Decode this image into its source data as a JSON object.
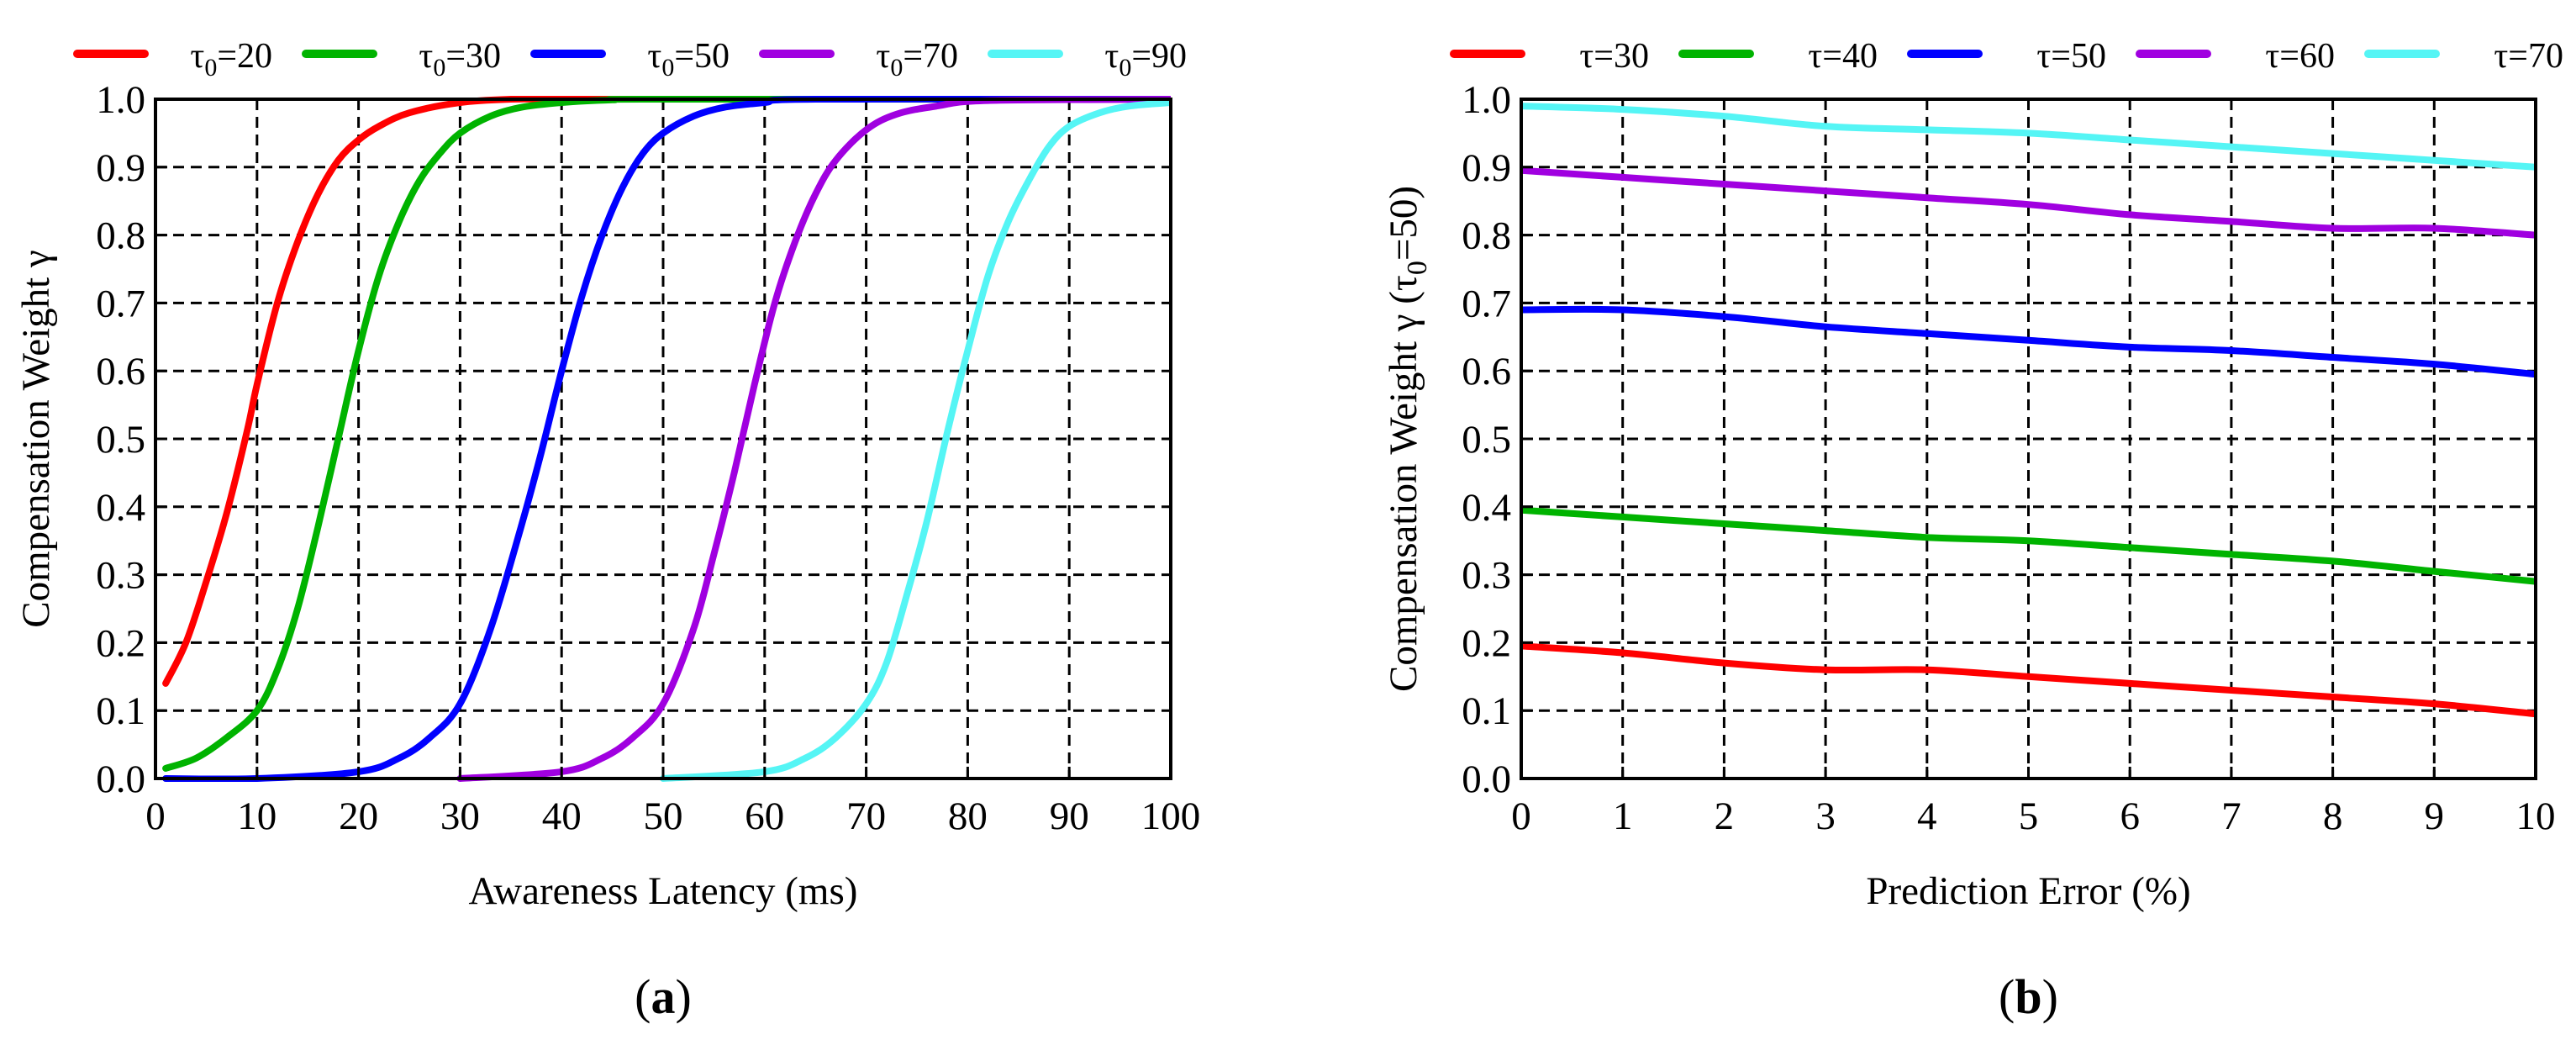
{
  "chart_data": [
    {
      "type": "line",
      "panel_label": "a",
      "title": "",
      "xlabel": "Awareness Latency (ms)",
      "ylabel": "Compensation Weight γ",
      "xlim": [
        0,
        100
      ],
      "ylim": [
        0.0,
        1.0
      ],
      "xticks": [
        "0",
        "10",
        "20",
        "30",
        "40",
        "50",
        "60",
        "70",
        "80",
        "90",
        "100"
      ],
      "yticks": [
        "0.0",
        "0.1",
        "0.2",
        "0.3",
        "0.4",
        "0.5",
        "0.6",
        "0.7",
        "0.8",
        "0.9",
        "1.0"
      ],
      "grid": true,
      "legend_position": "top",
      "series": [
        {
          "name_sym": "τ",
          "name_sub": "0",
          "name_rest": "=20",
          "color": "#ff0000",
          "x": [
            1,
            3,
            5,
            7,
            9,
            10,
            12,
            14,
            16,
            18,
            20,
            22,
            25,
            30,
            35,
            40,
            60,
            100
          ],
          "y": [
            0.14,
            0.2,
            0.29,
            0.39,
            0.51,
            0.58,
            0.7,
            0.79,
            0.86,
            0.91,
            0.94,
            0.96,
            0.98,
            0.995,
            1.0,
            1.0,
            1.0,
            1.0
          ]
        },
        {
          "name_sym": "τ",
          "name_sub": "0",
          "name_rest": "=30",
          "color": "#00b300",
          "x": [
            1,
            4,
            7,
            10,
            12,
            14,
            16,
            18,
            20,
            22,
            24,
            26,
            28,
            30,
            33,
            36,
            40,
            45,
            50,
            100
          ],
          "y": [
            0.015,
            0.03,
            0.06,
            0.1,
            0.16,
            0.25,
            0.37,
            0.5,
            0.63,
            0.74,
            0.82,
            0.88,
            0.92,
            0.95,
            0.975,
            0.988,
            0.995,
            0.999,
            1.0,
            1.0
          ]
        },
        {
          "name_sym": "τ",
          "name_sub": "0",
          "name_rest": "=50",
          "color": "#0000ff",
          "x": [
            1,
            10,
            20,
            24,
            27,
            30,
            33,
            36,
            38,
            40,
            42,
            44,
            46,
            48,
            50,
            53,
            56,
            60,
            65,
            100
          ],
          "y": [
            0.0,
            0.0,
            0.01,
            0.03,
            0.06,
            0.11,
            0.22,
            0.37,
            0.48,
            0.6,
            0.71,
            0.8,
            0.87,
            0.92,
            0.95,
            0.975,
            0.988,
            0.995,
            1.0,
            1.0
          ]
        },
        {
          "name_sym": "τ",
          "name_sub": "0",
          "name_rest": "=70",
          "color": "#a000e0",
          "x": [
            30,
            40,
            44,
            47,
            50,
            53,
            55,
            57,
            59,
            61,
            63,
            65,
            67,
            70,
            73,
            77,
            82,
            100
          ],
          "y": [
            0.0,
            0.01,
            0.03,
            0.06,
            0.11,
            0.22,
            0.33,
            0.45,
            0.58,
            0.7,
            0.79,
            0.86,
            0.91,
            0.955,
            0.978,
            0.99,
            0.998,
            1.0
          ]
        },
        {
          "name_sym": "τ",
          "name_sub": "0",
          "name_rest": "=90",
          "color": "#55f5f5",
          "x": [
            50,
            60,
            64,
            67,
            70,
            72,
            74,
            76,
            78,
            80,
            82,
            84,
            86,
            88,
            90,
            93,
            96,
            100
          ],
          "y": [
            0.0,
            0.01,
            0.03,
            0.06,
            0.11,
            0.17,
            0.27,
            0.38,
            0.51,
            0.63,
            0.74,
            0.82,
            0.88,
            0.93,
            0.96,
            0.98,
            0.99,
            0.995
          ]
        }
      ]
    },
    {
      "type": "line",
      "panel_label": "b",
      "title": "",
      "xlabel": "Prediction Error (%)",
      "ylabel_pre": "Compensation Weight γ (",
      "ylabel_sym": "τ",
      "ylabel_sub": "0",
      "ylabel_post": "=50)",
      "xlim": [
        0,
        10
      ],
      "ylim": [
        0.0,
        1.0
      ],
      "xticks": [
        "0",
        "1",
        "2",
        "3",
        "4",
        "5",
        "6",
        "7",
        "8",
        "9",
        "10"
      ],
      "yticks": [
        "0.0",
        "0.1",
        "0.2",
        "0.3",
        "0.4",
        "0.5",
        "0.6",
        "0.7",
        "0.8",
        "0.9",
        "1.0"
      ],
      "grid": true,
      "legend_position": "top",
      "series": [
        {
          "name": "τ=30",
          "color": "#ff0000",
          "x": [
            0,
            1,
            2,
            3,
            4,
            5,
            6,
            7,
            8,
            9,
            10
          ],
          "y": [
            0.195,
            0.185,
            0.17,
            0.16,
            0.16,
            0.15,
            0.14,
            0.13,
            0.12,
            0.11,
            0.095
          ]
        },
        {
          "name": "τ=40",
          "color": "#00b300",
          "x": [
            0,
            1,
            2,
            3,
            4,
            5,
            6,
            7,
            8,
            9,
            10
          ],
          "y": [
            0.395,
            0.385,
            0.375,
            0.365,
            0.355,
            0.35,
            0.34,
            0.33,
            0.32,
            0.305,
            0.29
          ]
        },
        {
          "name": "τ=50",
          "color": "#0000ff",
          "x": [
            0,
            1,
            2,
            3,
            4,
            5,
            6,
            7,
            8,
            9,
            10
          ],
          "y": [
            0.69,
            0.69,
            0.68,
            0.665,
            0.655,
            0.645,
            0.635,
            0.63,
            0.62,
            0.61,
            0.595
          ]
        },
        {
          "name": "τ=60",
          "color": "#a000e0",
          "x": [
            0,
            1,
            2,
            3,
            4,
            5,
            6,
            7,
            8,
            9,
            10
          ],
          "y": [
            0.895,
            0.885,
            0.875,
            0.865,
            0.855,
            0.845,
            0.83,
            0.82,
            0.81,
            0.81,
            0.8
          ]
        },
        {
          "name": "τ=70",
          "color": "#55f5f5",
          "x": [
            0,
            1,
            2,
            3,
            4,
            5,
            6,
            7,
            8,
            9,
            10
          ],
          "y": [
            0.99,
            0.985,
            0.975,
            0.96,
            0.955,
            0.95,
            0.94,
            0.93,
            0.92,
            0.91,
            0.9
          ]
        }
      ]
    }
  ]
}
